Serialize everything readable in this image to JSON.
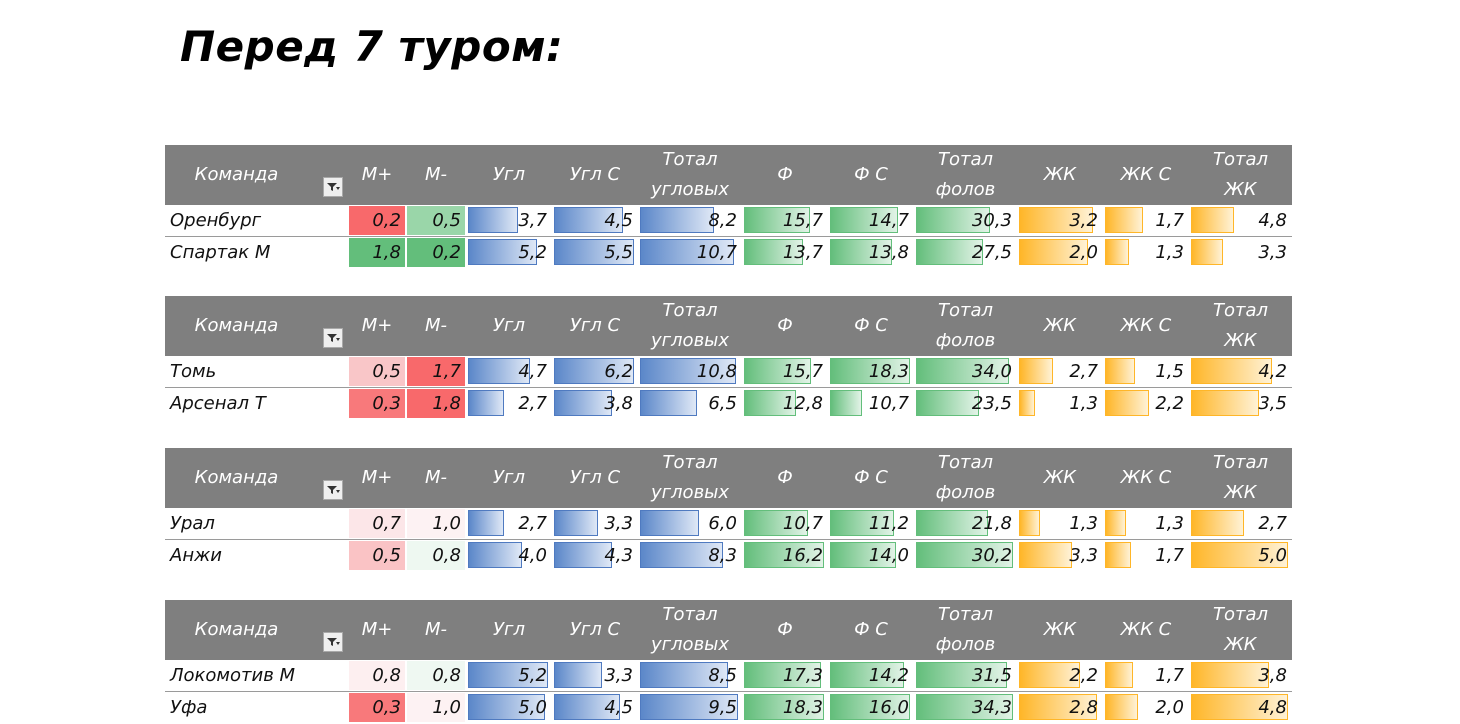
{
  "title": "Перед 7 туром:",
  "colors": {
    "header_bg": "#7f7f7f",
    "header_text": "#ffffff",
    "bar_blue": "#5b87c9",
    "bar_green": "#63be7b",
    "bar_orange": "#ffb628",
    "scale_red": "#f8696b",
    "scale_white": "#fcfcff",
    "scale_green": "#63be7b"
  },
  "headers": [
    {
      "key": "team",
      "label": "Команда"
    },
    {
      "key": "mplus",
      "label": "М+"
    },
    {
      "key": "mminus",
      "label": "М-"
    },
    {
      "key": "ugl",
      "label": "Угл"
    },
    {
      "key": "ugl_s",
      "label": "Угл С"
    },
    {
      "key": "total_ugl",
      "label": "Тотал\nугловых"
    },
    {
      "key": "f",
      "label": "Ф"
    },
    {
      "key": "f_s",
      "label": "Ф С"
    },
    {
      "key": "total_fol",
      "label": "Тотал\nфолов"
    },
    {
      "key": "zhk",
      "label": "ЖК"
    },
    {
      "key": "zhk_s",
      "label": "ЖК С"
    },
    {
      "key": "total_zhk",
      "label": "Тотал\nЖК"
    }
  ],
  "tables": [
    {
      "rows": [
        {
          "team": "Оренбург",
          "values": [
            "0,2",
            "0,5",
            "3,7",
            "4,5",
            "8,2",
            "15,7",
            "14,7",
            "30,3",
            "3,2",
            "1,7",
            "4,8"
          ],
          "mplus_color": "#f8696b",
          "mminus_color": "#9ad6a9",
          "bars": [
            0.62,
            0.86,
            0.75,
            0.83,
            0.85,
            0.76,
            0.92,
            0.48,
            0.44,
            0.96
          ]
        },
        {
          "team": "Спартак М",
          "values": [
            "1,8",
            "0,2",
            "5,2",
            "5,5",
            "10,7",
            "13,7",
            "13,8",
            "27,5",
            "2,0",
            "1,3",
            "3,3"
          ],
          "mplus_color": "#63be7b",
          "mminus_color": "#63be7b",
          "bars": [
            0.86,
            1.0,
            0.96,
            0.74,
            0.77,
            0.69,
            0.86,
            0.3,
            0.33,
            0.66
          ]
        }
      ]
    },
    {
      "rows": [
        {
          "team": "Томь",
          "values": [
            "0,5",
            "1,7",
            "4,7",
            "6,2",
            "10,8",
            "15,7",
            "18,3",
            "34,0",
            "2,7",
            "1,5",
            "4,2"
          ],
          "mplus_color": "#f9c6c8",
          "mminus_color": "#f8696b",
          "bars": [
            0.78,
            1.0,
            0.98,
            0.84,
            1.0,
            0.96,
            0.42,
            0.37,
            0.84
          ]
        },
        {
          "team": "Арсенал Т",
          "values": [
            "0,3",
            "1,8",
            "2,7",
            "3,8",
            "6,5",
            "12,8",
            "10,7",
            "23,5",
            "1,3",
            "2,2",
            "3,5"
          ],
          "mplus_color": "#f8797b",
          "mminus_color": "#f8696b",
          "bars": [
            0.45,
            0.72,
            0.58,
            0.65,
            0.4,
            0.65,
            0.2,
            0.55,
            0.7
          ]
        }
      ]
    },
    {
      "rows": [
        {
          "team": "Урал",
          "values": [
            "0,7",
            "1,0",
            "2,7",
            "3,3",
            "6,0",
            "10,7",
            "11,2",
            "21,8",
            "1,3",
            "1,3",
            "2,7"
          ],
          "mplus_color": "#fce6e8",
          "mminus_color": "#fdf2f3",
          "bars": [
            0.45,
            0.55,
            0.6,
            0.8,
            0.8,
            0.74,
            0.26,
            0.26,
            0.55
          ]
        },
        {
          "team": "Анжи",
          "values": [
            "0,5",
            "0,8",
            "4,0",
            "4,3",
            "8,3",
            "16,2",
            "14,0",
            "30,2",
            "3,3",
            "1,7",
            "5,0"
          ],
          "mplus_color": "#fac3c5",
          "mminus_color": "#eef8f1",
          "bars": [
            0.68,
            0.73,
            0.85,
            1.0,
            0.82,
            1.0,
            0.66,
            0.33,
            1.0
          ]
        }
      ]
    },
    {
      "rows": [
        {
          "team": "Локомотив М",
          "values": [
            "0,8",
            "0,8",
            "5,2",
            "3,3",
            "8,5",
            "17,3",
            "14,2",
            "31,5",
            "2,2",
            "1,7",
            "3,8"
          ],
          "mplus_color": "#fdeff0",
          "mminus_color": "#eff8f2",
          "bars": [
            1.0,
            0.6,
            0.9,
            0.96,
            0.92,
            0.94,
            0.76,
            0.35,
            0.8
          ]
        },
        {
          "team": "Уфа",
          "values": [
            "0,3",
            "1,0",
            "5,0",
            "4,5",
            "9,5",
            "18,3",
            "16,0",
            "34,3",
            "2,8",
            "2,0",
            "4,8"
          ],
          "mplus_color": "#f8797b",
          "mminus_color": "#fdf2f3",
          "bars": [
            0.96,
            0.82,
            1.0,
            1.0,
            1.0,
            1.0,
            0.97,
            0.41,
            1.0
          ]
        }
      ]
    }
  ]
}
